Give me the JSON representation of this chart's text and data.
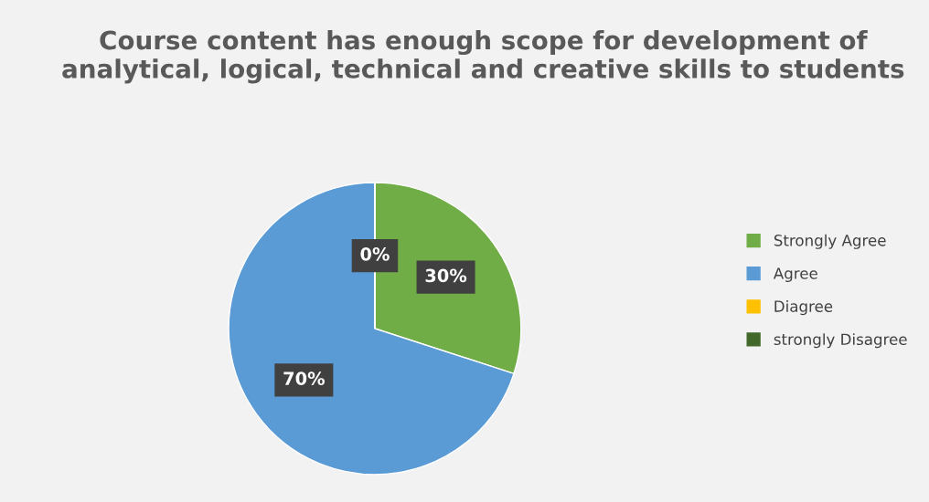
{
  "chart_data": {
    "type": "pie",
    "title": "Course content has enough scope for development of analytical, logical, technical and creative skills to students",
    "categories": [
      "Strongly Agree",
      "Agree",
      "Diagree",
      "strongly Disagree"
    ],
    "values": [
      30,
      70,
      0,
      0
    ],
    "colors": [
      "#70ad47",
      "#5b9bd5",
      "#ffc000",
      "#43682b"
    ],
    "value_labels": [
      "30%",
      "70%",
      "0%",
      null
    ],
    "legend": "right"
  }
}
